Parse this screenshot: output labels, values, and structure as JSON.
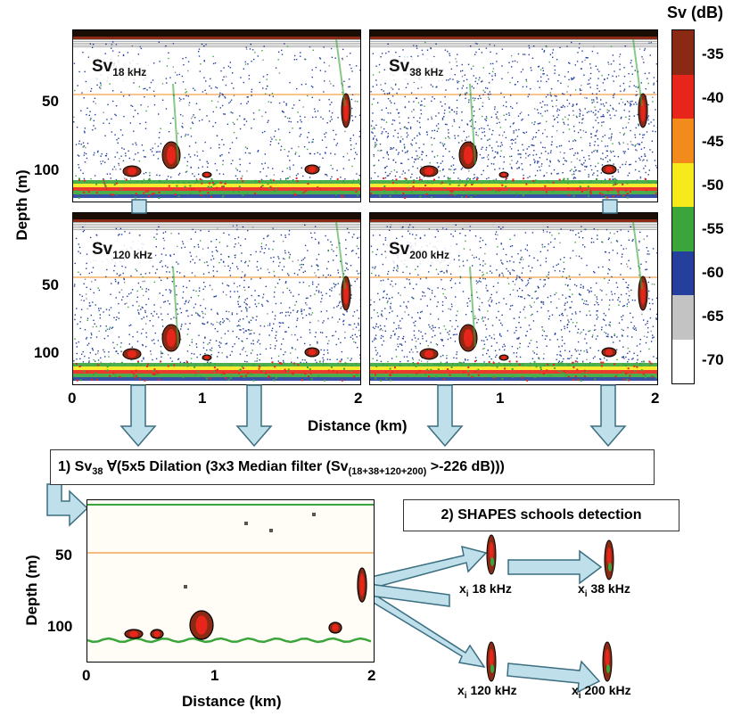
{
  "colorbar": {
    "title": "Sv (dB)",
    "ticks": [
      "-35",
      "-40",
      "-45",
      "-50",
      "-55",
      "-60",
      "-65",
      "-70"
    ],
    "colors": [
      "#8b2a14",
      "#e8251a",
      "#f28b1c",
      "#f7ea1a",
      "#3aa53a",
      "#243f9c",
      "#c3c3c3",
      "#ffffff"
    ]
  },
  "panels": [
    {
      "prefix": "Sv",
      "sub": "18 kHz"
    },
    {
      "prefix": "Sv",
      "sub": "38 kHz"
    },
    {
      "prefix": "Sv",
      "sub": "120 kHz"
    },
    {
      "prefix": "Sv",
      "sub": "200 kHz"
    }
  ],
  "top_axes": {
    "ylabel": "Depth (m)",
    "yticks": [
      "50",
      "100"
    ],
    "xticks": [
      "0",
      "1",
      "2"
    ],
    "xlabel": "Distance (km)"
  },
  "step1": {
    "prefix": "1) Sv",
    "prefix_sub": "38",
    "middle": " ∀(5x5 Dilation (3x3 Median filter (Sv",
    "middle_sub": "(18+38+120+200)",
    "suffix": " >-226 dB)))"
  },
  "step2": {
    "text": "2) SHAPES schools detection"
  },
  "bottom_axes": {
    "ylabel": "Depth (m)",
    "yticks": [
      "50",
      "100"
    ],
    "xticks": [
      "0",
      "1",
      "2"
    ],
    "xlabel": "Distance (km)"
  },
  "school_labels": [
    {
      "prefix": "x",
      "sub": "i",
      "freq": " 18 kHz"
    },
    {
      "prefix": "x",
      "sub": "i",
      "freq": " 38 kHz"
    },
    {
      "prefix": "x",
      "sub": "i",
      "freq": " 120 kHz"
    },
    {
      "prefix": "x",
      "sub": "i",
      "freq": " 200 kHz"
    }
  ]
}
